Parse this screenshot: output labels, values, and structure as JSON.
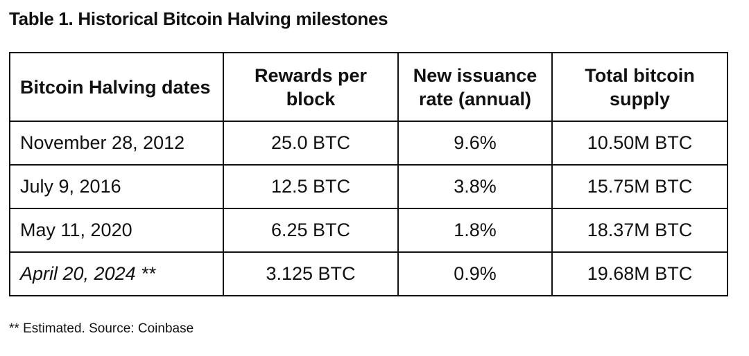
{
  "title": "Table 1. Historical Bitcoin Halving milestones",
  "headers": [
    "Bitcoin Halving dates",
    "Rewards per block",
    "New issuance rate (annual)",
    "Total bitcoin supply"
  ],
  "rows": [
    {
      "date": "November 28, 2012",
      "reward": "25.0 BTC",
      "rate": "9.6%",
      "supply": "10.50M BTC"
    },
    {
      "date": "July 9, 2016",
      "reward": "12.5 BTC",
      "rate": "3.8%",
      "supply": "15.75M BTC"
    },
    {
      "date": "May 11, 2020",
      "reward": "6.25 BTC",
      "rate": "1.8%",
      "supply": "18.37M BTC"
    },
    {
      "date": "April 20, 2024 **",
      "reward": "3.125 BTC",
      "rate": "0.9%",
      "supply": "19.68M BTC"
    }
  ],
  "footnote": "** Estimated. Source: Coinbase"
}
